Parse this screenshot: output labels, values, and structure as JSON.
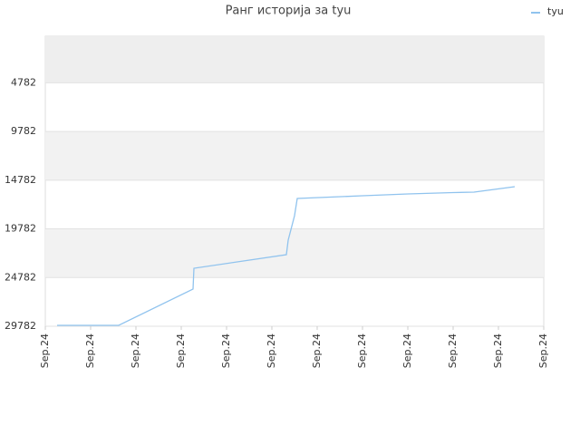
{
  "chart_data": {
    "type": "line",
    "title": "Ранг историја за tyu",
    "x": [
      0.26,
      1.62,
      3.26,
      3.28,
      5.32,
      5.36,
      5.5,
      5.56,
      7.0,
      8.0,
      9.0,
      9.46,
      10.36
    ],
    "series": [
      {
        "name": "tyu",
        "color": "#90c3ee",
        "values": [
          29689,
          29689,
          25966,
          23826,
          22430,
          20941,
          18428,
          16659,
          16380,
          16194,
          16055,
          16008,
          15450
        ]
      }
    ],
    "xlim": [
      0,
      11
    ],
    "xticks": [
      {
        "value": 0,
        "label": "Sep.24"
      },
      {
        "value": 1,
        "label": "Sep.24"
      },
      {
        "value": 2,
        "label": "Sep.24"
      },
      {
        "value": 3,
        "label": "Sep.24"
      },
      {
        "value": 4,
        "label": "Sep.24"
      },
      {
        "value": 5,
        "label": "Sep.24"
      },
      {
        "value": 6,
        "label": "Sep.24"
      },
      {
        "value": 7,
        "label": "Sep.24"
      },
      {
        "value": 8,
        "label": "Sep.24"
      },
      {
        "value": 9,
        "label": "Sep.24"
      },
      {
        "value": 10,
        "label": "Sep.24"
      },
      {
        "value": 11,
        "label": "Sep.24"
      }
    ],
    "ylim": [
      29782,
      0
    ],
    "yticks": [
      4782,
      9782,
      14782,
      19782,
      24782,
      29782
    ],
    "grid": true,
    "legend": "top-right"
  }
}
